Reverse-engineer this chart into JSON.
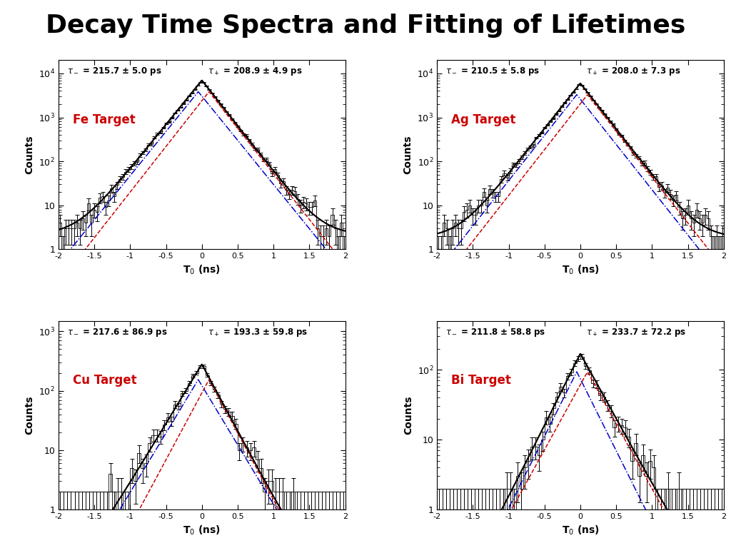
{
  "title": "Decay Time Spectra and Fitting of Lifetimes",
  "title_fontsize": 26,
  "title_fontweight": "bold",
  "panels": [
    {
      "label": "Fe Target",
      "label_color": "#cc0000",
      "tau_minus": 215.7,
      "tau_minus_err": 5.0,
      "tau_plus": 208.9,
      "tau_plus_err": 4.9,
      "peak_counts": 7000,
      "ylim_top": 20000,
      "ymin": 1,
      "noise_seed": 42,
      "n_bins": 100
    },
    {
      "label": "Ag Target",
      "label_color": "#cc0000",
      "tau_minus": 210.5,
      "tau_minus_err": 5.8,
      "tau_plus": 208.0,
      "tau_plus_err": 7.3,
      "peak_counts": 6000,
      "ylim_top": 20000,
      "ymin": 1,
      "noise_seed": 43,
      "n_bins": 100
    },
    {
      "label": "Cu Target",
      "label_color": "#cc0000",
      "tau_minus": 217.6,
      "tau_minus_err": 86.9,
      "tau_plus": 193.3,
      "tau_plus_err": 59.8,
      "peak_counts": 280,
      "ylim_top": 1500,
      "ymin": 1,
      "noise_seed": 44,
      "n_bins": 80
    },
    {
      "label": "Bi Target",
      "label_color": "#cc0000",
      "tau_minus": 211.8,
      "tau_minus_err": 58.8,
      "tau_plus": 233.7,
      "tau_plus_err": 72.2,
      "peak_counts": 170,
      "ylim_top": 500,
      "ymin": 1,
      "noise_seed": 45,
      "n_bins": 80
    }
  ],
  "xlim": [
    -2,
    2
  ],
  "xlabel": "T$_0$ (ns)",
  "ylabel": "Counts",
  "background_color": "#ffffff",
  "data_color": "#000000",
  "fit_color": "#000000",
  "fit_envelope_color": "#cc0000",
  "comp_minus_color": "#0000cc",
  "comp_plus_color": "#cc0000"
}
